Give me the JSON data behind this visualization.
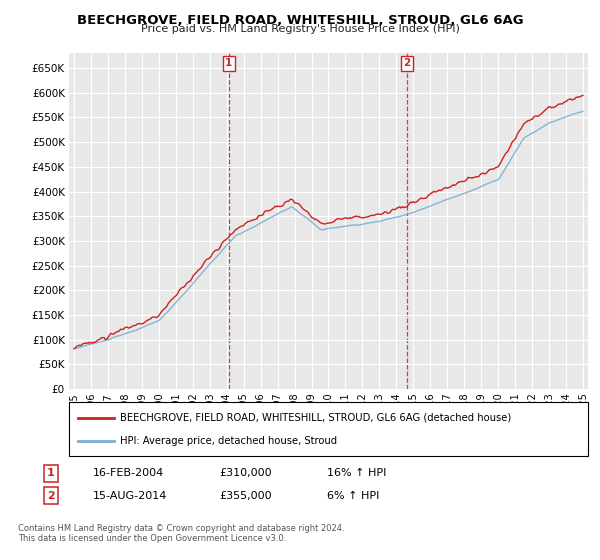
{
  "title": "BEECHGROVE, FIELD ROAD, WHITESHILL, STROUD, GL6 6AG",
  "subtitle": "Price paid vs. HM Land Registry's House Price Index (HPI)",
  "legend_line1": "BEECHGROVE, FIELD ROAD, WHITESHILL, STROUD, GL6 6AG (detached house)",
  "legend_line2": "HPI: Average price, detached house, Stroud",
  "ann1_label": "1",
  "ann1_date": "16-FEB-2004",
  "ann1_price": "£310,000",
  "ann1_hpi": "16% ↑ HPI",
  "ann1_x": 2004.125,
  "ann2_label": "2",
  "ann2_date": "15-AUG-2014",
  "ann2_price": "£355,000",
  "ann2_hpi": "6% ↑ HPI",
  "ann2_x": 2014.625,
  "footer1": "Contains HM Land Registry data © Crown copyright and database right 2024.",
  "footer2": "This data is licensed under the Open Government Licence v3.0.",
  "ylim": [
    0,
    680000
  ],
  "yticks": [
    0,
    50000,
    100000,
    150000,
    200000,
    250000,
    300000,
    350000,
    400000,
    450000,
    500000,
    550000,
    600000,
    650000
  ],
  "xlim_start": 1994.7,
  "xlim_end": 2025.3,
  "xticks": [
    1995,
    1996,
    1997,
    1998,
    1999,
    2000,
    2001,
    2002,
    2003,
    2004,
    2005,
    2006,
    2007,
    2008,
    2009,
    2010,
    2011,
    2012,
    2013,
    2014,
    2015,
    2016,
    2017,
    2018,
    2019,
    2020,
    2021,
    2022,
    2023,
    2024,
    2025
  ],
  "hpi_color": "#7BAFD4",
  "price_color": "#CC2222",
  "background_color": "#FFFFFF",
  "plot_bg_color": "#E8E8E8"
}
